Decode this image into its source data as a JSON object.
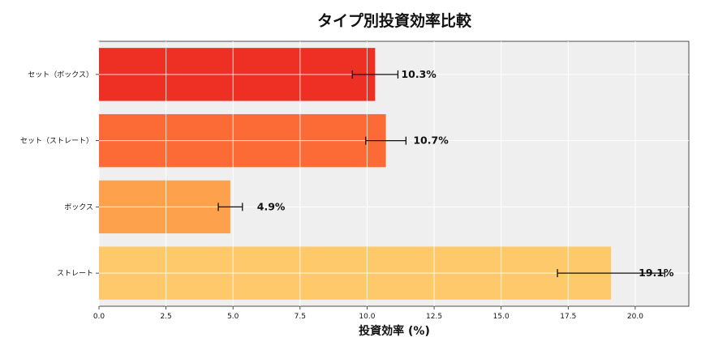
{
  "chart_data": {
    "type": "bar",
    "orientation": "horizontal",
    "title": "タイプ別投資効率比較",
    "xlabel": "投資効率 (%)",
    "ylabel": "",
    "categories": [
      "ストレート",
      "ボックス",
      "セット（ストレート）",
      "セット（ボックス）"
    ],
    "values": [
      19.1,
      4.9,
      10.7,
      10.3
    ],
    "errors": [
      2.0,
      0.45,
      0.75,
      0.85
    ],
    "data_labels": [
      "19.1%",
      "4.9%",
      "10.7%",
      "10.3%"
    ],
    "colors": [
      "#fdc96a",
      "#fda14c",
      "#fc6a36",
      "#ee2f24"
    ],
    "xlim": [
      0,
      22
    ],
    "xticks": [
      0.0,
      2.5,
      5.0,
      7.5,
      10.0,
      12.5,
      15.0,
      17.5,
      20.0
    ],
    "xtick_labels": [
      "0.0",
      "2.5",
      "5.0",
      "7.5",
      "10.0",
      "12.5",
      "15.0",
      "17.5",
      "20.0"
    ],
    "grid": true,
    "background": "#efefef"
  }
}
